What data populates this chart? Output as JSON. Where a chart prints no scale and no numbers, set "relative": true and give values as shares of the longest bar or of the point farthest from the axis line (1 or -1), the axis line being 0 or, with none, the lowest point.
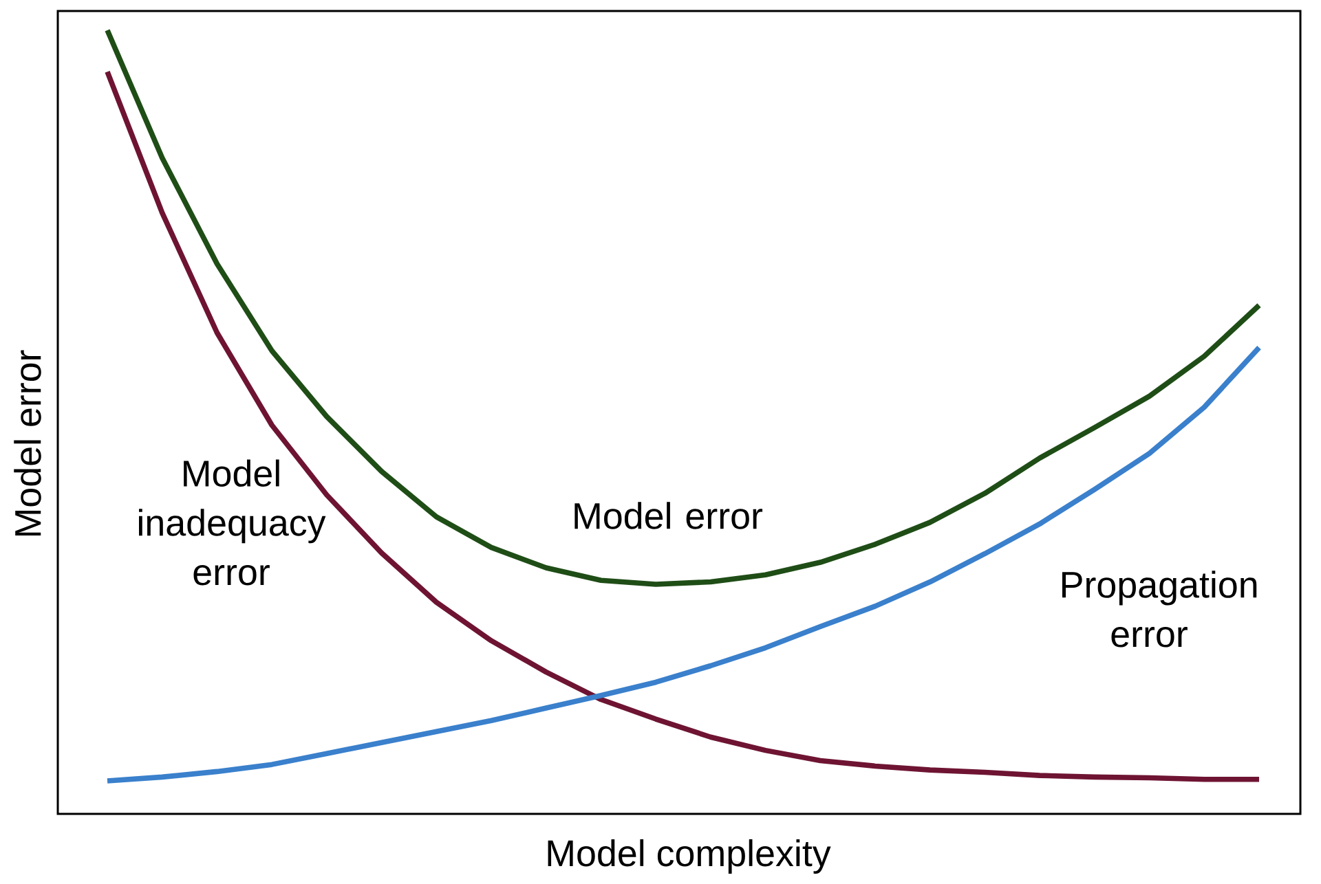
{
  "chart_data": {
    "type": "line",
    "relative": true,
    "xlabel": "Model complexity",
    "ylabel": "Model error",
    "categories": [
      null,
      null,
      null,
      null,
      null,
      null,
      null,
      null,
      null,
      null,
      null,
      null,
      null,
      null,
      null,
      null,
      null,
      null,
      null,
      null,
      null,
      null
    ],
    "series": [
      {
        "name": "Model error",
        "color": "#1f4d16",
        "values": [
          1.0,
          0.837,
          0.702,
          0.591,
          0.507,
          0.437,
          0.379,
          0.34,
          0.314,
          0.298,
          0.293,
          0.296,
          0.305,
          0.321,
          0.344,
          0.372,
          0.409,
          0.454,
          0.493,
          0.533,
          0.584,
          0.649
        ]
      },
      {
        "name": "Model inadequacy error",
        "color": "#6e1432",
        "values": [
          0.947,
          0.767,
          0.614,
          0.496,
          0.407,
          0.333,
          0.27,
          0.221,
          0.181,
          0.146,
          0.121,
          0.098,
          0.081,
          0.068,
          0.061,
          0.056,
          0.053,
          0.049,
          0.047,
          0.046,
          0.044,
          0.044
        ]
      },
      {
        "name": "Propagation error",
        "color": "#3a80cc",
        "values": [
          0.042,
          0.047,
          0.054,
          0.063,
          0.077,
          0.091,
          0.105,
          0.119,
          0.135,
          0.151,
          0.168,
          0.189,
          0.212,
          0.239,
          0.265,
          0.296,
          0.332,
          0.37,
          0.414,
          0.46,
          0.519,
          0.595
        ]
      }
    ]
  }
}
